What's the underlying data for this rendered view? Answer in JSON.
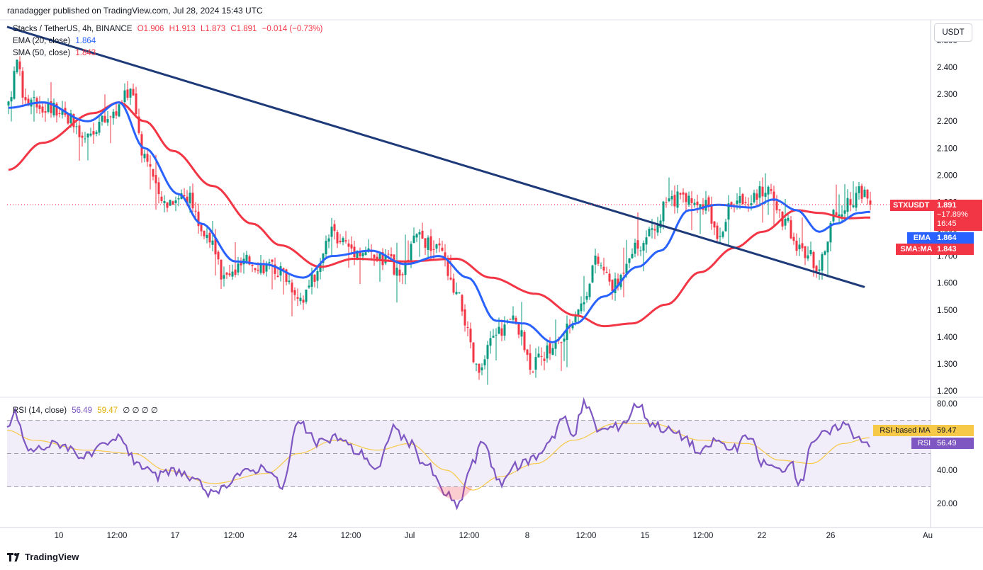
{
  "header": {
    "publisher": "ranadagger published on TradingView.com, Jul 28, 2024 15:43 UTC"
  },
  "legend": {
    "symbol": "Stacks / TetherUS, 4h, BINANCE",
    "open": "O1.906",
    "high": "H1.913",
    "low": "L1.873",
    "close": "C1.891",
    "change": "−0.014 (−0.73%)",
    "ema_label": "EMA (20, close)",
    "ema_value": "1.864",
    "sma_label": "SMA (50, close)",
    "sma_value": "1.843",
    "rsi_label": "RSI (14, close)",
    "rsi_value": "56.49",
    "rsi_ma_value": "59.47",
    "rsi_zeros": "∅ ∅ ∅ ∅"
  },
  "currency_button": "USDT",
  "price_tags": {
    "symbol": "STXUSDT",
    "last": "1.891",
    "pct": "−17.89%",
    "countdown": "16:45",
    "ema_name": "EMA",
    "ema_value": "1.864",
    "sma_name": "SMA:MA",
    "sma_value": "1.843"
  },
  "rsi_tags": {
    "ma_name": "RSI-based MA",
    "ma_value": "59.47",
    "rsi_name": "RSI",
    "rsi_value": "56.49"
  },
  "brand": "TradingView",
  "colors": {
    "up": "#089981",
    "down": "#f23645",
    "ema": "#2962ff",
    "sma": "#f23645",
    "trendline": "#1e3a78",
    "rsi": "#7e57c2",
    "rsi_ma": "#f7c948",
    "last_price": "#f23645"
  },
  "chart_data": [
    {
      "type": "candlestick",
      "title": "Stacks / TetherUS, 4h, BINANCE",
      "price_ticks": [
        "1.200",
        "1.300",
        "1.400",
        "1.500",
        "1.600",
        "1.700",
        "1.800",
        "1.900",
        "2.000",
        "2.100",
        "2.200",
        "2.300",
        "2.400",
        "2.500"
      ],
      "x_ticks": [
        "10",
        "12:00",
        "17",
        "12:00",
        "24",
        "12:00",
        "Jul",
        "12:00",
        "8",
        "12:00",
        "15",
        "12:00",
        "22",
        "26",
        "Au"
      ],
      "ylim": [
        1.2,
        2.52
      ],
      "anchors": [
        {
          "t": 0,
          "p": 2.25
        },
        {
          "t": 3,
          "p": 2.44
        },
        {
          "t": 6,
          "p": 2.27
        },
        {
          "t": 18,
          "p": 2.25
        },
        {
          "t": 27,
          "p": 2.13
        },
        {
          "t": 33,
          "p": 2.2
        },
        {
          "t": 38,
          "p": 2.24
        },
        {
          "t": 43,
          "p": 2.32
        },
        {
          "t": 48,
          "p": 2.08
        },
        {
          "t": 54,
          "p": 1.9
        },
        {
          "t": 62,
          "p": 1.93
        },
        {
          "t": 70,
          "p": 1.78
        },
        {
          "t": 76,
          "p": 1.62
        },
        {
          "t": 85,
          "p": 1.68
        },
        {
          "t": 95,
          "p": 1.65
        },
        {
          "t": 104,
          "p": 1.55
        },
        {
          "t": 108,
          "p": 1.62
        },
        {
          "t": 114,
          "p": 1.78
        },
        {
          "t": 124,
          "p": 1.72
        },
        {
          "t": 134,
          "p": 1.68
        },
        {
          "t": 138,
          "p": 1.62
        },
        {
          "t": 144,
          "p": 1.77
        },
        {
          "t": 152,
          "p": 1.72
        },
        {
          "t": 158,
          "p": 1.55
        },
        {
          "t": 166,
          "p": 1.27
        },
        {
          "t": 172,
          "p": 1.42
        },
        {
          "t": 178,
          "p": 1.46
        },
        {
          "t": 185,
          "p": 1.3
        },
        {
          "t": 194,
          "p": 1.38
        },
        {
          "t": 202,
          "p": 1.52
        },
        {
          "t": 207,
          "p": 1.68
        },
        {
          "t": 214,
          "p": 1.59
        },
        {
          "t": 220,
          "p": 1.73
        },
        {
          "t": 228,
          "p": 1.78
        },
        {
          "t": 232,
          "p": 1.9
        },
        {
          "t": 240,
          "p": 1.92
        },
        {
          "t": 246,
          "p": 1.88
        },
        {
          "t": 250,
          "p": 1.79
        },
        {
          "t": 256,
          "p": 1.9
        },
        {
          "t": 262,
          "p": 1.92
        },
        {
          "t": 268,
          "p": 1.95
        },
        {
          "t": 274,
          "p": 1.82
        },
        {
          "t": 280,
          "p": 1.72
        },
        {
          "t": 286,
          "p": 1.67
        },
        {
          "t": 292,
          "p": 1.86
        },
        {
          "t": 297,
          "p": 1.89
        },
        {
          "t": 300,
          "p": 1.95
        },
        {
          "t": 304,
          "p": 1.891
        }
      ],
      "trendline": [
        {
          "t": 0,
          "p": 2.55
        },
        {
          "t": 302,
          "p": 1.585
        }
      ],
      "last_price": 1.891,
      "ema_20_last": 1.864,
      "sma_50_last": 1.843,
      "ema_anchors": [
        {
          "t": 0,
          "p": 2.25
        },
        {
          "t": 12,
          "p": 2.27
        },
        {
          "t": 28,
          "p": 2.2
        },
        {
          "t": 39,
          "p": 2.27
        },
        {
          "t": 48,
          "p": 2.1
        },
        {
          "t": 60,
          "p": 1.93
        },
        {
          "t": 68,
          "p": 1.82
        },
        {
          "t": 80,
          "p": 1.68
        },
        {
          "t": 90,
          "p": 1.67
        },
        {
          "t": 104,
          "p": 1.62
        },
        {
          "t": 114,
          "p": 1.7
        },
        {
          "t": 128,
          "p": 1.72
        },
        {
          "t": 140,
          "p": 1.67
        },
        {
          "t": 152,
          "p": 1.7
        },
        {
          "t": 162,
          "p": 1.62
        },
        {
          "t": 172,
          "p": 1.46
        },
        {
          "t": 182,
          "p": 1.45
        },
        {
          "t": 192,
          "p": 1.38
        },
        {
          "t": 200,
          "p": 1.45
        },
        {
          "t": 210,
          "p": 1.55
        },
        {
          "t": 222,
          "p": 1.66
        },
        {
          "t": 230,
          "p": 1.72
        },
        {
          "t": 240,
          "p": 1.87
        },
        {
          "t": 250,
          "p": 1.89
        },
        {
          "t": 262,
          "p": 1.88
        },
        {
          "t": 270,
          "p": 1.91
        },
        {
          "t": 278,
          "p": 1.87
        },
        {
          "t": 286,
          "p": 1.79
        },
        {
          "t": 292,
          "p": 1.82
        },
        {
          "t": 300,
          "p": 1.86
        },
        {
          "t": 304,
          "p": 1.864
        }
      ],
      "sma_anchors": [
        {
          "t": 0,
          "p": 2.02
        },
        {
          "t": 12,
          "p": 2.12
        },
        {
          "t": 30,
          "p": 2.23
        },
        {
          "t": 39,
          "p": 2.27
        },
        {
          "t": 48,
          "p": 2.2
        },
        {
          "t": 58,
          "p": 2.09
        },
        {
          "t": 72,
          "p": 1.96
        },
        {
          "t": 86,
          "p": 1.82
        },
        {
          "t": 96,
          "p": 1.74
        },
        {
          "t": 110,
          "p": 1.66
        },
        {
          "t": 122,
          "p": 1.69
        },
        {
          "t": 140,
          "p": 1.68
        },
        {
          "t": 158,
          "p": 1.69
        },
        {
          "t": 170,
          "p": 1.62
        },
        {
          "t": 186,
          "p": 1.56
        },
        {
          "t": 200,
          "p": 1.48
        },
        {
          "t": 210,
          "p": 1.44
        },
        {
          "t": 220,
          "p": 1.45
        },
        {
          "t": 232,
          "p": 1.52
        },
        {
          "t": 244,
          "p": 1.64
        },
        {
          "t": 256,
          "p": 1.73
        },
        {
          "t": 266,
          "p": 1.79
        },
        {
          "t": 278,
          "p": 1.87
        },
        {
          "t": 286,
          "p": 1.86
        },
        {
          "t": 296,
          "p": 1.84
        },
        {
          "t": 304,
          "p": 1.843
        }
      ],
      "candle_count": 305
    },
    {
      "type": "line",
      "title": "RSI (14, close)",
      "y_ticks": [
        "20.00",
        "40.00",
        "80.00"
      ],
      "ylim": [
        15,
        82
      ],
      "bands": {
        "upper": 70,
        "middle": 50,
        "lower": 30
      },
      "rsi_last": 56.49,
      "rsi_ma_last": 59.47,
      "rsi_anchors": [
        {
          "t": 0,
          "p": 66
        },
        {
          "t": 3,
          "p": 74
        },
        {
          "t": 8,
          "p": 52
        },
        {
          "t": 20,
          "p": 56
        },
        {
          "t": 30,
          "p": 48
        },
        {
          "t": 38,
          "p": 55
        },
        {
          "t": 43,
          "p": 60
        },
        {
          "t": 48,
          "p": 46
        },
        {
          "t": 56,
          "p": 36
        },
        {
          "t": 64,
          "p": 40
        },
        {
          "t": 72,
          "p": 32
        },
        {
          "t": 78,
          "p": 25
        },
        {
          "t": 88,
          "p": 38
        },
        {
          "t": 98,
          "p": 42
        },
        {
          "t": 104,
          "p": 30
        },
        {
          "t": 110,
          "p": 68
        },
        {
          "t": 118,
          "p": 56
        },
        {
          "t": 124,
          "p": 60
        },
        {
          "t": 134,
          "p": 50
        },
        {
          "t": 140,
          "p": 40
        },
        {
          "t": 146,
          "p": 66
        },
        {
          "t": 152,
          "p": 56
        },
        {
          "t": 158,
          "p": 44
        },
        {
          "t": 166,
          "p": 26
        },
        {
          "t": 170,
          "p": 18
        },
        {
          "t": 176,
          "p": 44
        },
        {
          "t": 180,
          "p": 58
        },
        {
          "t": 186,
          "p": 32
        },
        {
          "t": 192,
          "p": 42
        },
        {
          "t": 200,
          "p": 48
        },
        {
          "t": 206,
          "p": 60
        },
        {
          "t": 210,
          "p": 72
        },
        {
          "t": 214,
          "p": 60
        },
        {
          "t": 218,
          "p": 80
        },
        {
          "t": 224,
          "p": 64
        },
        {
          "t": 230,
          "p": 66
        },
        {
          "t": 234,
          "p": 70
        },
        {
          "t": 238,
          "p": 80
        },
        {
          "t": 244,
          "p": 68
        },
        {
          "t": 250,
          "p": 64
        },
        {
          "t": 256,
          "p": 60
        },
        {
          "t": 262,
          "p": 50
        },
        {
          "t": 268,
          "p": 58
        },
        {
          "t": 274,
          "p": 52
        },
        {
          "t": 280,
          "p": 60
        },
        {
          "t": 286,
          "p": 44
        },
        {
          "t": 292,
          "p": 40
        },
        {
          "t": 296,
          "p": 44
        },
        {
          "t": 300,
          "p": 32
        },
        {
          "t": 304,
          "p": 58
        },
        {
          "t": 310,
          "p": 62
        },
        {
          "t": 316,
          "p": 68
        },
        {
          "t": 322,
          "p": 60
        },
        {
          "t": 326,
          "p": 56.49
        }
      ],
      "rsi_ma_anchors": [
        {
          "t": 0,
          "p": 64
        },
        {
          "t": 10,
          "p": 58
        },
        {
          "t": 30,
          "p": 52
        },
        {
          "t": 48,
          "p": 50
        },
        {
          "t": 60,
          "p": 40
        },
        {
          "t": 78,
          "p": 32
        },
        {
          "t": 98,
          "p": 38
        },
        {
          "t": 110,
          "p": 50
        },
        {
          "t": 124,
          "p": 58
        },
        {
          "t": 140,
          "p": 52
        },
        {
          "t": 152,
          "p": 56
        },
        {
          "t": 166,
          "p": 40
        },
        {
          "t": 176,
          "p": 28
        },
        {
          "t": 186,
          "p": 36
        },
        {
          "t": 200,
          "p": 44
        },
        {
          "t": 214,
          "p": 58
        },
        {
          "t": 230,
          "p": 68
        },
        {
          "t": 244,
          "p": 68
        },
        {
          "t": 262,
          "p": 58
        },
        {
          "t": 280,
          "p": 56
        },
        {
          "t": 292,
          "p": 46
        },
        {
          "t": 304,
          "p": 44
        },
        {
          "t": 316,
          "p": 56
        },
        {
          "t": 326,
          "p": 59.47
        }
      ]
    }
  ]
}
